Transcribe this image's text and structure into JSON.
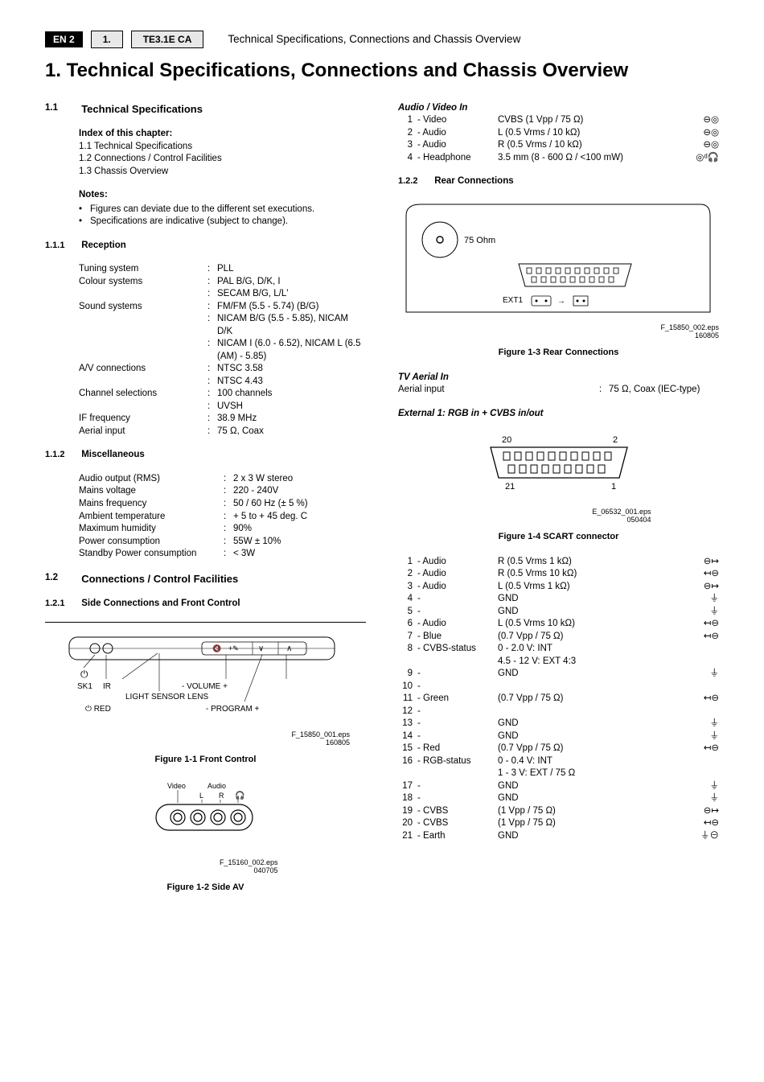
{
  "header": {
    "badge": "EN 2",
    "num": "1.",
    "model": "TE3.1E CA",
    "title": "Technical Specifications, Connections and Chassis Overview"
  },
  "mainTitle": "1.   Technical Specifications, Connections and Chassis Overview",
  "sections": {
    "s11_num": "1.1",
    "s11_title": "Technical Specifications",
    "index_title": "Index of this chapter:",
    "index_items": [
      "1.1  Technical Specifications",
      "1.2  Connections / Control Facilities",
      "1.3  Chassis Overview"
    ],
    "notes_title": "Notes:",
    "notes_items": [
      "Figures can deviate due to the different set executions.",
      "Specifications are indicative (subject to change)."
    ],
    "s111_num": "1.1.1",
    "s111_title": "Reception",
    "reception": [
      {
        "label": "Tuning system",
        "vals": [
          "PLL"
        ]
      },
      {
        "label": "Colour systems",
        "vals": [
          "PAL B/G, D/K, I",
          "SECAM B/G, L/L'"
        ]
      },
      {
        "label": "Sound systems",
        "vals": [
          "FM/FM (5.5 - 5.74) (B/G)",
          "NICAM B/G (5.5 - 5.85), NICAM D/K",
          "NICAM I  (6.0 - 6.52), NICAM L (6.5 (AM) - 5.85)"
        ]
      },
      {
        "label": "A/V connections",
        "vals": [
          "NTSC 3.58",
          "NTSC 4.43"
        ]
      },
      {
        "label": "Channel selections",
        "vals": [
          "100 channels",
          "UVSH"
        ]
      },
      {
        "label": "IF frequency",
        "vals": [
          "38.9 MHz"
        ]
      },
      {
        "label": "Aerial input",
        "vals": [
          "75 Ω, Coax"
        ]
      }
    ],
    "s112_num": "1.1.2",
    "s112_title": "Miscellaneous",
    "misc": [
      {
        "label": "Audio output (RMS)",
        "val": "2 x 3 W stereo"
      },
      {
        "label": "Mains voltage",
        "val": "220 - 240V"
      },
      {
        "label": "Mains frequency",
        "val": "50 / 60 Hz (±  5 %)"
      },
      {
        "label": "Ambient temperature",
        "val": "+ 5 to + 45 deg. C"
      },
      {
        "label": "Maximum humidity",
        "val": "90%"
      },
      {
        "label": "Power consumption",
        "val": "55W ± 10%"
      },
      {
        "label": "Standby Power consumption",
        "val": "< 3W"
      }
    ],
    "s12_num": "1.2",
    "s12_title": "Connections / Control Facilities",
    "s121_num": "1.2.1",
    "s121_title": "Side  Connections and  Front  Control",
    "fig1_caption": "Figure 1-1 Front Control",
    "fig1_eps": "F_15850_001.eps",
    "fig1_date": "160805",
    "fig1_labels": {
      "sk1": "SK1",
      "ir": "IR",
      "vol": "- VOLUME +",
      "lens": "LIGHT SENSOR LENS",
      "red": "⏻ RED",
      "prog": "- PROGRAM +",
      "pwr": "⏻",
      "mute_key": "🔇",
      "plus": "+✎",
      "v": "∨",
      "carat": "∧"
    },
    "fig2_caption": "Figure 1-2 Side AV",
    "fig2_eps": "F_15160_002.eps",
    "fig2_date": "040705",
    "fig2_labels": {
      "video": "Video",
      "audio": "Audio",
      "l": "L",
      "r": "R",
      "hp": "🎧"
    },
    "avio_title": "Audio / Video In",
    "avio": [
      {
        "n": "1",
        "name": "- Video",
        "val": "CVBS (1 Vpp / 75 Ω)",
        "sym": "⊖◎"
      },
      {
        "n": "2",
        "name": "- Audio",
        "val": "L (0.5 Vrms / 10 kΩ)",
        "sym": "⊖◎"
      },
      {
        "n": "3",
        "name": "- Audio",
        "val": "R (0.5 Vrms / 10 kΩ)",
        "sym": "⊖◎"
      },
      {
        "n": "4",
        "name": "- Headphone",
        "val": "3.5 mm (8 - 600 Ω / <100 mW)",
        "sym": "◎ᵈ🎧"
      }
    ],
    "s122_num": "1.2.2",
    "s122_title": "Rear Connections",
    "fig3_caption": "Figure 1-3 Rear Connections",
    "fig3_eps": "F_15850_002.eps",
    "fig3_date": "160805",
    "fig3_labels": {
      "ohm": "75 Ohm",
      "ext1": "EXT1"
    },
    "tvaerial_title": "TV Aerial In",
    "tvaerial_label": "Aerial input",
    "tvaerial_val": "75 Ω, Coax (IEC-type)",
    "ext1_title": "External 1: RGB  in + CVBS in/out",
    "fig4_caption": "Figure 1-4 SCART connector",
    "fig4_eps": "E_06532_001.eps",
    "fig4_date": "050404",
    "fig4_labels": {
      "p20": "20",
      "p2": "2",
      "p21": "21",
      "p1": "1"
    },
    "scart": [
      {
        "n": "1",
        "name": "- Audio",
        "val": "R (0.5 Vrms 1 kΩ)",
        "sym": "⊖↦"
      },
      {
        "n": "2",
        "name": "- Audio",
        "val": "R (0.5 Vrms 10 kΩ)",
        "sym": "↤⊖"
      },
      {
        "n": "3",
        "name": "- Audio",
        "val": "L (0.5 Vrms 1 kΩ)",
        "sym": "⊖↦"
      },
      {
        "n": "4",
        "name": "-",
        "val": "GND",
        "sym": "⏚"
      },
      {
        "n": "5",
        "name": "-",
        "val": "GND",
        "sym": "⏚"
      },
      {
        "n": "6",
        "name": "- Audio",
        "val": "L (0.5 Vrms 10 kΩ)",
        "sym": "↤⊖"
      },
      {
        "n": "7",
        "name": "- Blue",
        "val": "(0.7 Vpp / 75 Ω)",
        "sym": "↤⊖"
      },
      {
        "n": "8",
        "name": "- CVBS-status",
        "val": "0 - 2.0 V: INT",
        "sym": ""
      },
      {
        "n": "",
        "name": "",
        "val": "4.5 - 12 V: EXT 4:3",
        "sym": ""
      },
      {
        "n": "9",
        "name": "-",
        "val": "GND",
        "sym": "⏚"
      },
      {
        "n": "10",
        "name": "-",
        "val": "",
        "sym": ""
      },
      {
        "n": "",
        "name": "",
        "val": "",
        "sym": ""
      },
      {
        "n": "11",
        "name": "- Green",
        "val": "(0.7 Vpp / 75 Ω)",
        "sym": "↤⊖"
      },
      {
        "n": "12",
        "name": "-",
        "val": "",
        "sym": ""
      },
      {
        "n": "",
        "name": "",
        "val": "",
        "sym": ""
      },
      {
        "n": "13",
        "name": "-",
        "val": "GND",
        "sym": "⏚"
      },
      {
        "n": "14",
        "name": "-",
        "val": "GND",
        "sym": "⏚"
      },
      {
        "n": "15",
        "name": "- Red",
        "val": "(0.7 Vpp / 75 Ω)",
        "sym": "↤⊖"
      },
      {
        "n": "16",
        "name": "- RGB-status",
        "val": "0 - 0.4 V: INT",
        "sym": ""
      },
      {
        "n": "",
        "name": "",
        "val": "1 - 3 V: EXT / 75 Ω",
        "sym": ""
      },
      {
        "n": "17",
        "name": "-",
        "val": "GND",
        "sym": "⏚"
      },
      {
        "n": "18",
        "name": "-",
        "val": "GND",
        "sym": "⏚"
      },
      {
        "n": "19",
        "name": "- CVBS",
        "val": "(1 Vpp / 75 Ω)",
        "sym": "⊖↦"
      },
      {
        "n": "20",
        "name": "- CVBS",
        "val": "(1 Vpp / 75 Ω)",
        "sym": "↤⊖"
      },
      {
        "n": "21",
        "name": "- Earth",
        "val": "GND",
        "sym": "⏚⊖"
      }
    ]
  }
}
